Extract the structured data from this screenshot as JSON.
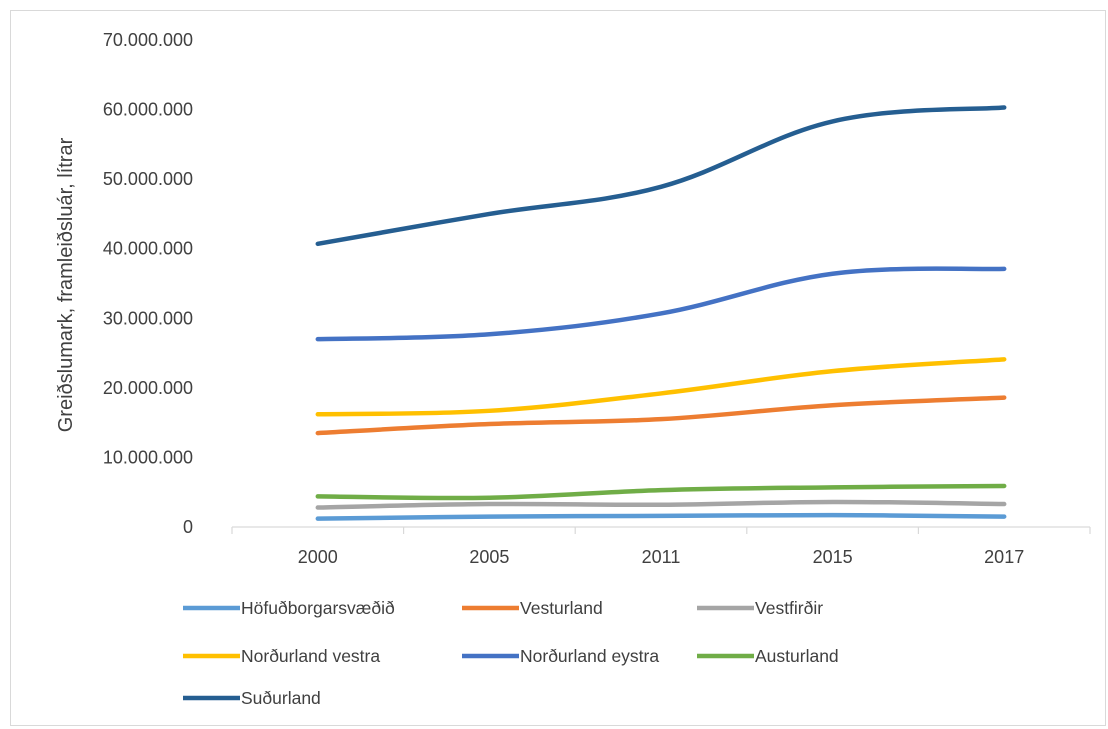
{
  "chart_data": {
    "type": "line",
    "title": "",
    "xlabel": "",
    "ylabel": "Greiðslumark, framleiðsluár, lítrar",
    "categories": [
      "2000",
      "2005",
      "2011",
      "2015",
      "2017"
    ],
    "ylim": [
      0,
      70000000
    ],
    "yticks": [
      0,
      10000000,
      20000000,
      30000000,
      40000000,
      50000000,
      60000000,
      70000000
    ],
    "ytick_labels": [
      "0",
      "10.000.000",
      "20.000.000",
      "30.000.000",
      "40.000.000",
      "50.000.000",
      "60.000.000",
      "70.000.000"
    ],
    "grid": false,
    "legend_position": "bottom",
    "series": [
      {
        "name": "Höfuðborgarsvæðið",
        "color": "#5B9BD5",
        "values": [
          1200000,
          1500000,
          1600000,
          1700000,
          1500000
        ]
      },
      {
        "name": "Vesturland",
        "color": "#ED7D31",
        "values": [
          13500000,
          14800000,
          15500000,
          17500000,
          18600000
        ]
      },
      {
        "name": "Vestfirðir",
        "color": "#A5A5A5",
        "values": [
          2800000,
          3300000,
          3200000,
          3600000,
          3300000
        ]
      },
      {
        "name": "Norðurland vestra",
        "color": "#FFC000",
        "values": [
          16200000,
          16700000,
          19200000,
          22400000,
          24100000
        ]
      },
      {
        "name": "Norðurland eystra",
        "color": "#4472C4",
        "values": [
          27000000,
          27700000,
          30700000,
          36400000,
          37100000
        ]
      },
      {
        "name": "Austurland",
        "color": "#70AD47",
        "values": [
          4400000,
          4200000,
          5300000,
          5700000,
          5900000
        ]
      },
      {
        "name": "Suðurland",
        "color": "#255E91",
        "values": [
          40700000,
          45000000,
          48900000,
          58300000,
          60300000
        ]
      }
    ]
  }
}
